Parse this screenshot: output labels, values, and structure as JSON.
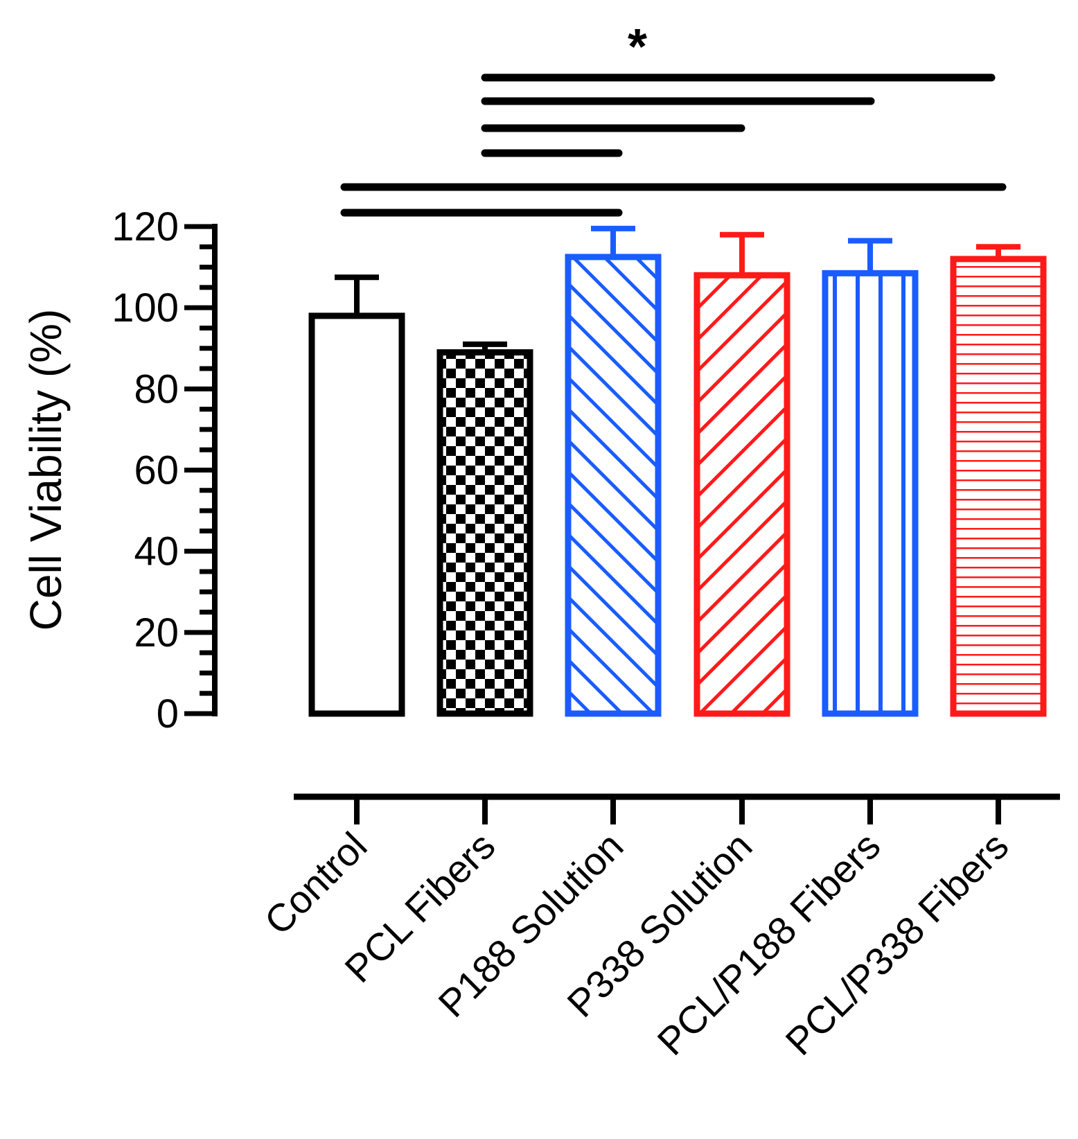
{
  "chart_data": {
    "type": "bar",
    "title": "",
    "xlabel": "",
    "ylabel": "Cell Viability (%)",
    "ylim": [
      0,
      120
    ],
    "yticks": [
      0,
      20,
      40,
      60,
      80,
      100,
      120
    ],
    "categories": [
      "Control",
      "PCL Fibers",
      "P188 Solution",
      "P338 Solution",
      "PCL/P188 Fibers",
      "PCL/P338 Fibers"
    ],
    "values": [
      98,
      89,
      112.5,
      108,
      108.5,
      112
    ],
    "errors": [
      9.5,
      2,
      7,
      10,
      8,
      3
    ],
    "colors": [
      "#000000",
      "#000000",
      "#1a5cff",
      "#ff1a1a",
      "#1a5cff",
      "#ff1a1a"
    ],
    "patterns": [
      "none",
      "checker",
      "diag-down",
      "diag-up",
      "vertical",
      "horizontal"
    ],
    "significance": {
      "label": "*",
      "comparisons": [
        {
          "from": "PCL Fibers",
          "to": "PCL/P338 Fibers"
        },
        {
          "from": "PCL Fibers",
          "to": "PCL/P188 Fibers"
        },
        {
          "from": "PCL Fibers",
          "to": "P338 Solution"
        },
        {
          "from": "PCL Fibers",
          "to": "P188 Solution"
        },
        {
          "from": "Control",
          "to": "PCL/P338 Fibers"
        },
        {
          "from": "Control",
          "to": "P188 Solution"
        }
      ]
    }
  }
}
